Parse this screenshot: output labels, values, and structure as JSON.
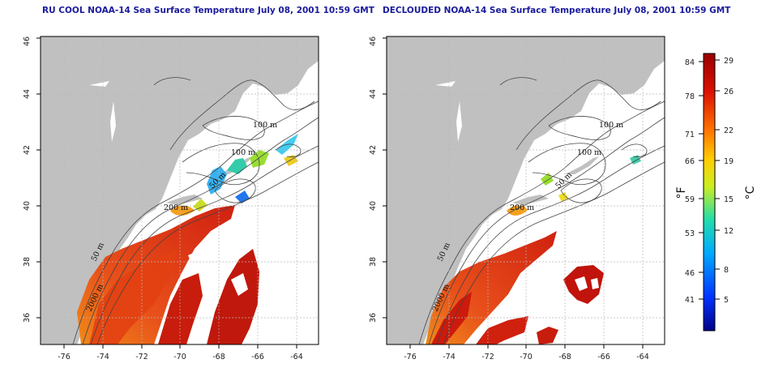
{
  "panels": [
    {
      "title": "RU COOL NOAA-14 Sea Surface Temperature July 08, 2001 10:59 GMT",
      "x_ticks": [
        "-76",
        "-74",
        "-72",
        "-70",
        "-68",
        "-66",
        "-64"
      ],
      "y_ticks": [
        "36",
        "38",
        "40",
        "42",
        "44",
        "46"
      ],
      "contour_labels": [
        "100 m",
        "100 m",
        "50 m",
        "200 m",
        "50 m",
        "2000 m"
      ]
    },
    {
      "title": "DECLOUDED NOAA-14 Sea Surface Temperature July 08, 2001 10:59 GMT",
      "x_ticks": [
        "-76",
        "-74",
        "-72",
        "-70",
        "-68",
        "-66",
        "-64"
      ],
      "y_ticks": [
        "36",
        "38",
        "40",
        "42",
        "44",
        "46"
      ],
      "contour_labels": [
        "100 m",
        "100 m",
        "50 m",
        "200 m",
        "50 m",
        "2000 m"
      ]
    }
  ],
  "colorbar": {
    "fahrenheit_ticks": [
      "84",
      "78",
      "71",
      "66",
      "59",
      "53",
      "46",
      "41"
    ],
    "celsius_ticks": [
      "29",
      "26",
      "22",
      "19",
      "15",
      "12",
      "8",
      "5"
    ],
    "fahrenheit_unit": "°F",
    "celsius_unit": "°C",
    "colors": [
      "#000088",
      "#0033ff",
      "#00aaff",
      "#22ddaa",
      "#ccee22",
      "#ffcc00",
      "#ff7700",
      "#dd1100",
      "#990000"
    ]
  },
  "colors": {
    "land": "#c0c0c0",
    "sst_warm": "#d82a10",
    "sst_hot": "#b30f0f",
    "sst_mid": "#f08a1a",
    "grid": "#b8b8b8",
    "title": "#1a1a9c"
  }
}
